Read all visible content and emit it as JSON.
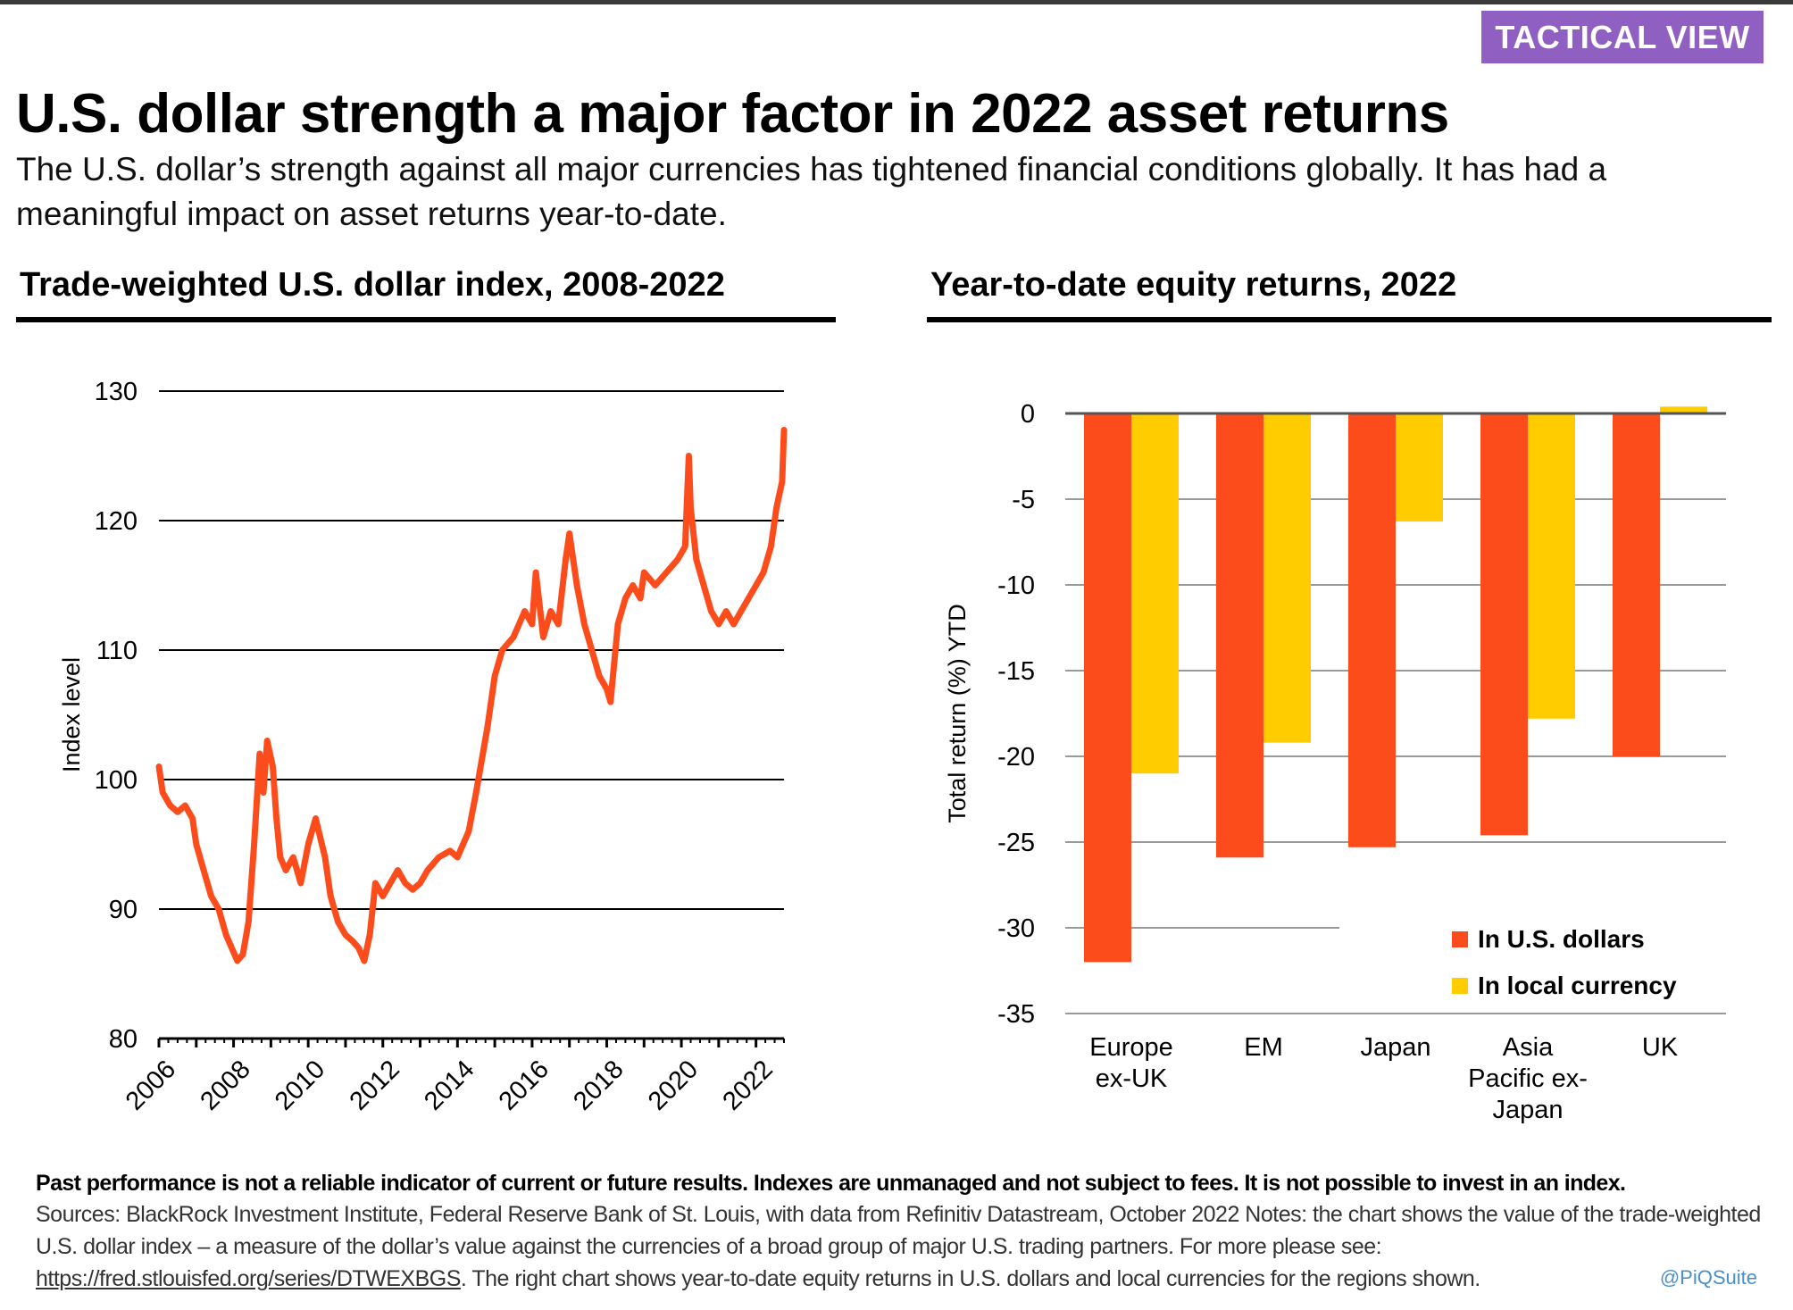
{
  "badge": "TACTICAL VIEW",
  "headline": "U.S. dollar strength a major factor in 2022 asset returns",
  "subhead": "The U.S. dollar’s strength against all major currencies has tightened financial conditions globally. It has had a meaningful impact on asset returns year-to-date.",
  "footer": {
    "disclaimer": "Past performance is not a reliable indicator of current or future results. Indexes are unmanaged and not subject to fees. It is not possible to invest in an index.",
    "sources_pre": "Sources: BlackRock Investment Institute, Federal Reserve Bank of St. Louis, with data from Refinitiv Datastream, October 2022 Notes: the chart shows the value of the trade-weighted U.S. dollar index – a measure of the dollar’s value against the currencies of a broad group of major U.S. trading partners. For more please see: ",
    "sources_link": "https://fred.stlouisfed.org/series/DTWEXBGS",
    "sources_post": ". The right chart shows year-to-date equity returns in U.S. dollars and local currencies for the regions shown.",
    "credit": "@PiQSuite"
  },
  "colors": {
    "usd": "#fc4c1c",
    "local": "#ffcc00",
    "badge": "#8f5fc2",
    "grid": "#000000",
    "gridRight": "#999999"
  },
  "chart_data": [
    {
      "type": "line",
      "title": "Trade-weighted U.S. dollar index, 2008-2022",
      "ylabel": "Index level",
      "xlabel": "",
      "ylim": [
        80,
        130
      ],
      "xlim": [
        2006,
        2022.75
      ],
      "yticks": [
        130,
        120,
        110,
        100,
        90,
        80
      ],
      "xticks": [
        "2006",
        "2008",
        "2010",
        "2012",
        "2014",
        "2016",
        "2018",
        "2020",
        "2022"
      ],
      "grid": true,
      "series": [
        {
          "x": [
            2006.0,
            2006.1,
            2006.3,
            2006.5,
            2006.7,
            2006.9,
            2007.0,
            2007.2,
            2007.4,
            2007.6,
            2007.8,
            2007.95,
            2008.1,
            2008.25,
            2008.4,
            2008.55,
            2008.7,
            2008.8,
            2008.9,
            2009.05,
            2009.15,
            2009.25,
            2009.4,
            2009.6,
            2009.8,
            2010.0,
            2010.2,
            2010.45,
            2010.6,
            2010.8,
            2011.0,
            2011.2,
            2011.35,
            2011.5,
            2011.65,
            2011.8,
            2012.0,
            2012.2,
            2012.4,
            2012.6,
            2012.8,
            2013.0,
            2013.2,
            2013.5,
            2013.8,
            2014.0,
            2014.3,
            2014.5,
            2014.8,
            2015.0,
            2015.2,
            2015.5,
            2015.8,
            2016.0,
            2016.1,
            2016.3,
            2016.5,
            2016.7,
            2016.9,
            2017.0,
            2017.2,
            2017.4,
            2017.6,
            2017.8,
            2018.0,
            2018.1,
            2018.3,
            2018.5,
            2018.7,
            2018.9,
            2019.0,
            2019.3,
            2019.6,
            2019.9,
            2020.1,
            2020.2,
            2020.25,
            2020.4,
            2020.6,
            2020.8,
            2021.0,
            2021.2,
            2021.4,
            2021.6,
            2021.8,
            2022.0,
            2022.2,
            2022.4,
            2022.55,
            2022.7,
            2022.75
          ],
          "y": [
            101,
            99,
            98,
            97.5,
            98,
            97,
            95,
            93,
            91,
            90,
            88,
            87,
            86,
            86.5,
            89,
            95,
            102,
            99,
            103,
            101,
            97,
            94,
            93,
            94,
            92,
            95,
            97,
            94,
            91,
            89,
            88,
            87.5,
            87,
            86,
            88,
            92,
            91,
            92,
            93,
            92,
            91.5,
            92,
            93,
            94,
            94.5,
            94,
            96,
            99,
            104,
            108,
            110,
            111,
            113,
            112,
            116,
            111,
            113,
            112,
            117,
            119,
            115,
            112,
            110,
            108,
            107,
            106,
            112,
            114,
            115,
            114,
            116,
            115,
            116,
            117,
            118,
            125,
            121,
            117,
            115,
            113,
            112,
            113,
            112,
            113,
            114,
            115,
            116,
            118,
            121,
            123,
            127
          ]
        }
      ]
    },
    {
      "type": "bar",
      "title": "Year-to-date equity returns, 2022",
      "ylabel": "Total return (%) YTD",
      "xlabel": "",
      "ylim": [
        -35,
        0
      ],
      "yticks": [
        0,
        -5,
        -10,
        -15,
        -20,
        -25,
        -30,
        -35
      ],
      "categories": [
        "Europe ex-UK",
        "EM",
        "Japan",
        "Asia Pacific ex-Japan",
        "UK"
      ],
      "category_lines": [
        [
          "Europe",
          "ex-UK"
        ],
        [
          "EM"
        ],
        [
          "Japan"
        ],
        [
          "Asia",
          "Pacific ex-",
          "Japan"
        ],
        [
          "UK"
        ]
      ],
      "legend_position": "bottom-right",
      "grid": true,
      "series": [
        {
          "name": "In U.S. dollars",
          "values": [
            -32,
            -25.9,
            -25.3,
            -24.6,
            -20
          ]
        },
        {
          "name": "In local currency",
          "values": [
            -21,
            -19.2,
            -6.3,
            -17.8,
            0.4
          ]
        }
      ]
    }
  ]
}
